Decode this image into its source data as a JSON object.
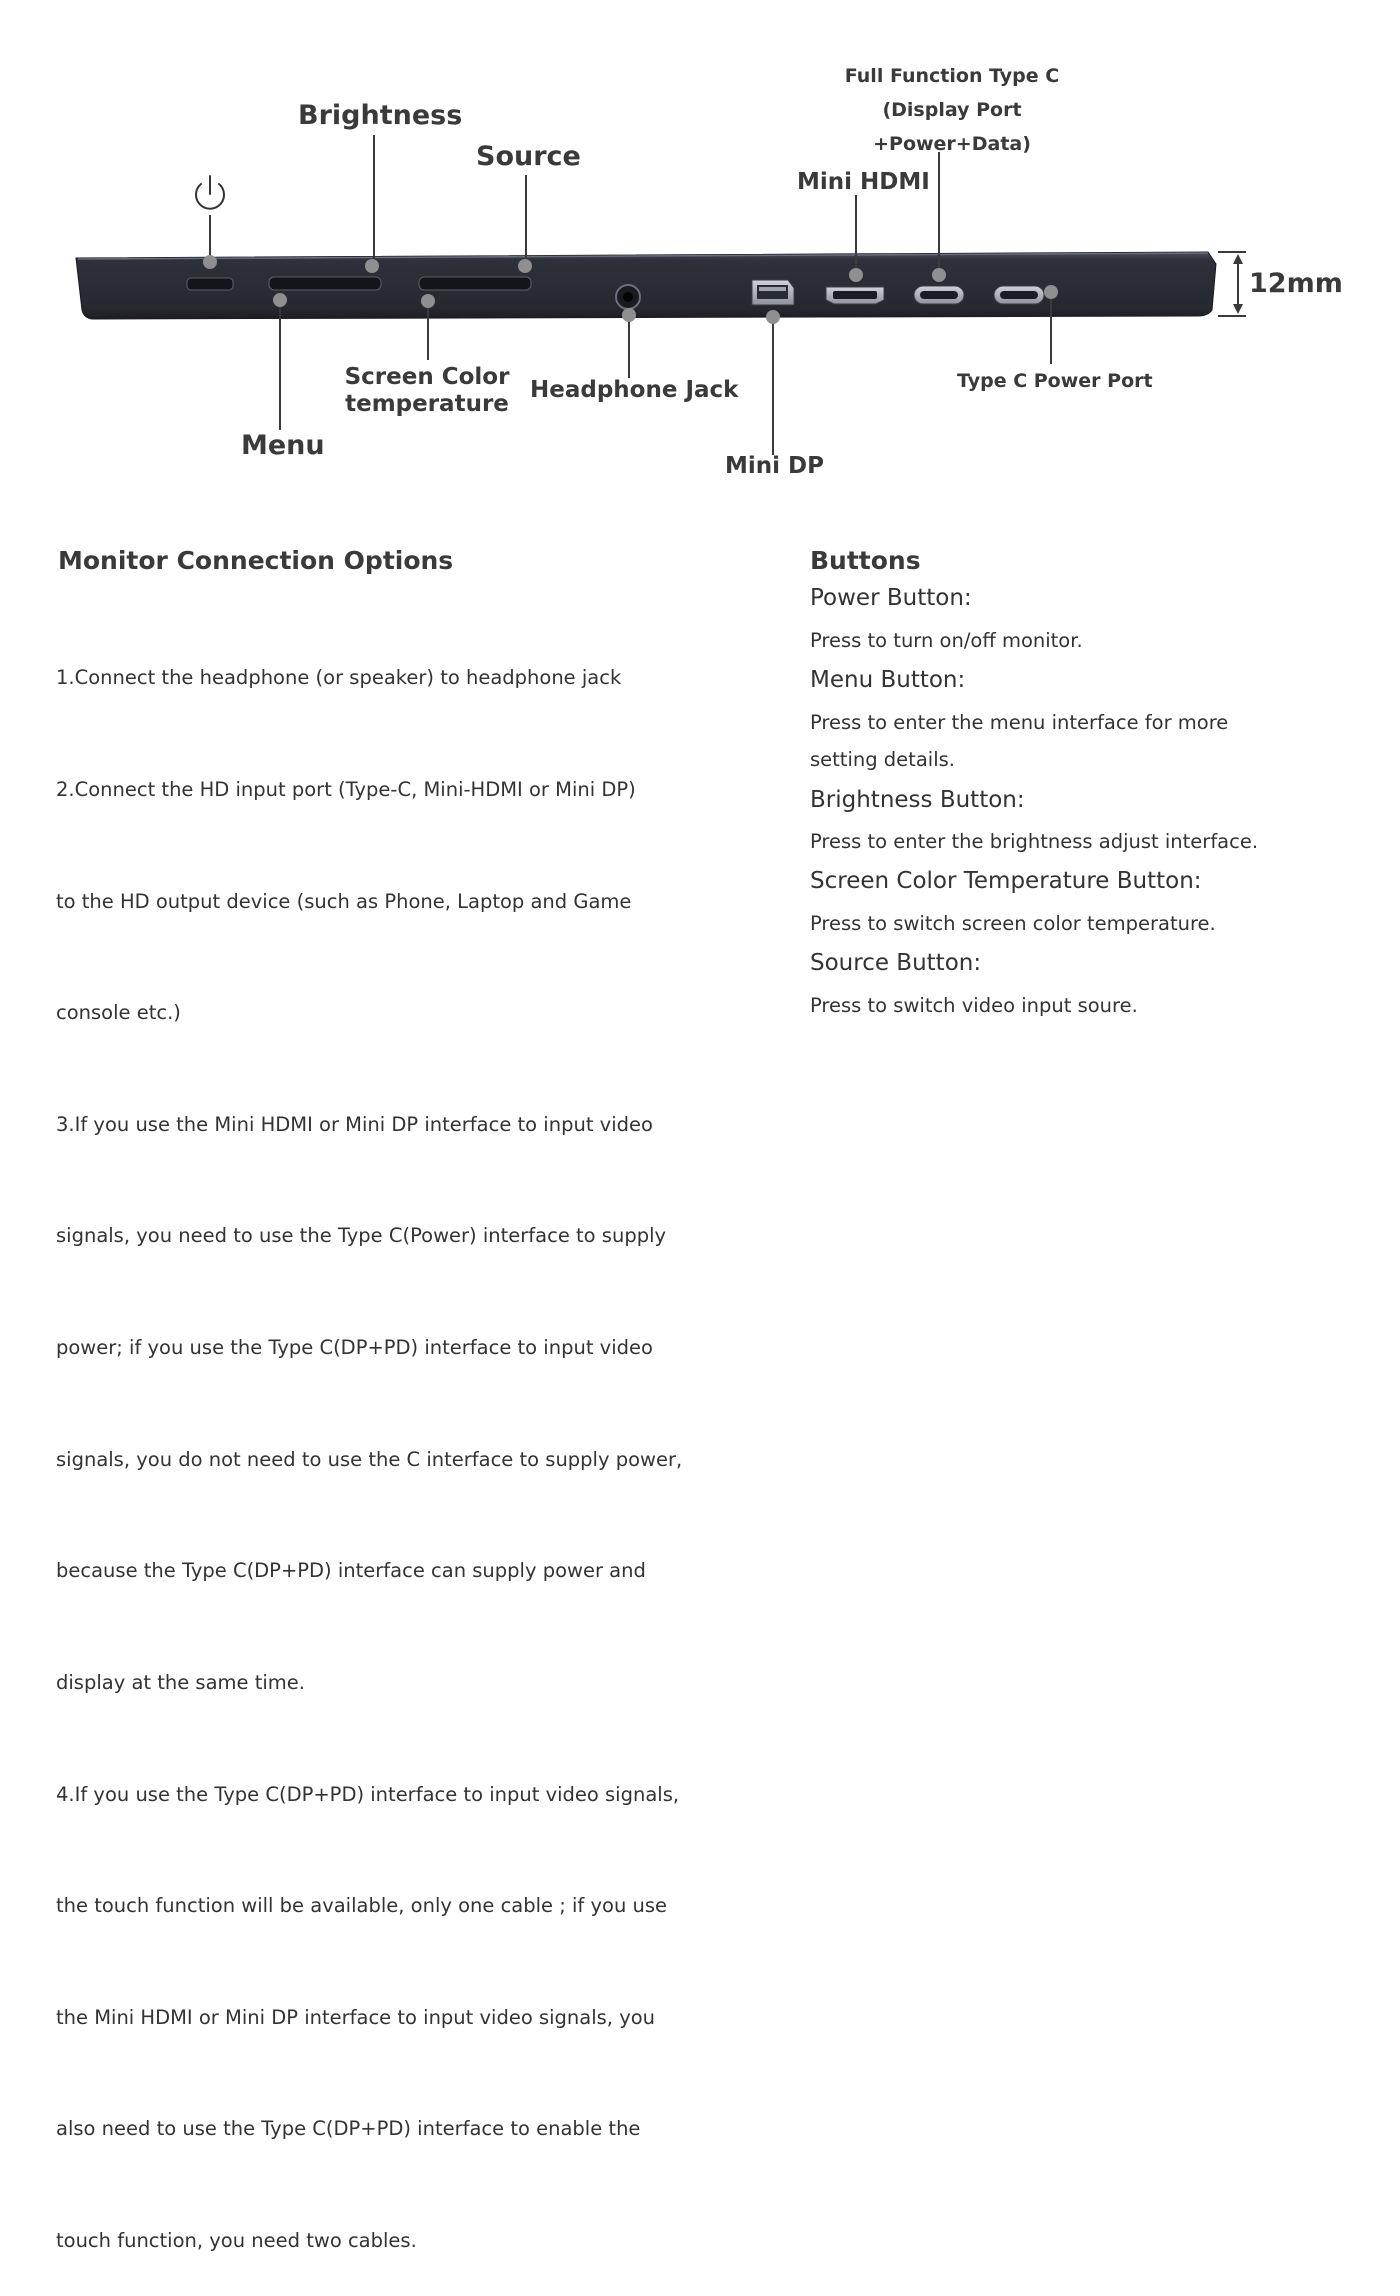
{
  "labels": {
    "brightness": "Brightness",
    "source": "Source",
    "full_function": [
      "Full Function Type C",
      "(Display Port",
      "+Power+Data)"
    ],
    "mini_hdmi": "Mini HDMI",
    "thickness": "12mm",
    "menu": "Menu",
    "screen_color": [
      "Screen Color",
      "temperature"
    ],
    "headphone_jack": "Headphone Jack",
    "mini_dp": "Mini DP",
    "type_c_power": "Type C Power Port"
  },
  "connection": {
    "title": "Monitor Connection Options",
    "lines": [
      "1.Connect the headphone (or speaker) to headphone jack",
      "2.Connect the HD input port (Type-C, Mini-HDMI or Mini DP)",
      "to the HD output device (such as Phone, Laptop and Game",
      "console etc.)",
      "3.If you use the Mini HDMI or Mini DP interface to input video",
      "signals, you need to use the Type C(Power) interface to supply",
      "power; if you use the Type C(DP+PD) interface to input video",
      "signals, you do not need to use the C interface to supply power,",
      "because the Type C(DP+PD) interface can supply power and",
      "display at the same time.",
      "4.If you use the  Type C(DP+PD)  interface to input video signals,",
      "the touch function will be available, only one cable ; if you use",
      "the Mini HDMI or Mini DP interface to input video signals, you",
      "also need to use the Type C(DP+PD) interface to enable the",
      "touch function, you need two cables."
    ]
  },
  "buttons": {
    "title": "Buttons",
    "items": [
      {
        "name": "Power Button:",
        "desc": [
          "Press to turn on/off monitor."
        ]
      },
      {
        "name": "Menu Button:",
        "desc": [
          "Press to enter the menu interface for more",
          "setting details."
        ]
      },
      {
        "name": "Brightness Button:",
        "desc": [
          "Press to enter the brightness adjust interface."
        ]
      },
      {
        "name": "Screen Color Temperature Button:",
        "desc": [
          "Press to switch screen color temperature."
        ]
      },
      {
        "name": "Source Button:",
        "desc": [
          "Press to switch video input soure."
        ]
      }
    ]
  },
  "colors": {
    "device_body": "#2a2d36",
    "device_edge": "#474b57",
    "dot": "#8f8f8f",
    "label": "#3a3a3a"
  }
}
